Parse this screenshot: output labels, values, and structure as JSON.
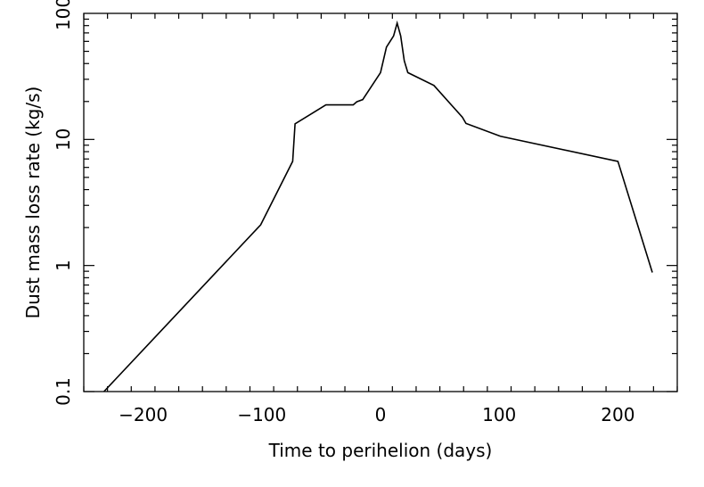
{
  "chart_data": {
    "type": "line",
    "title": "",
    "xlabel": "Time to perihelion (days)",
    "ylabel": "Dust mass loss rate (kg/s)",
    "xlim": [
      -250,
      250
    ],
    "ylim": [
      0.1,
      100
    ],
    "yscale": "log",
    "grid": false,
    "legend": "none",
    "x_ticks": [
      -200,
      -100,
      0,
      100,
      200
    ],
    "x_tick_labels": [
      "−200",
      "−100",
      "0",
      "100",
      "200"
    ],
    "y_ticks": [
      0.1,
      1,
      10,
      100
    ],
    "y_tick_labels": [
      "0.1",
      "1",
      "10",
      "100"
    ],
    "series": [
      {
        "color": "#000000",
        "x": [
          -233,
          -101,
          -74,
          -72,
          -46,
          -23,
          -20,
          -15,
          0,
          5,
          11,
          14,
          17,
          20,
          23,
          45,
          69,
          72,
          101,
          200,
          229
        ],
        "y": [
          0.1,
          2.1,
          6.7,
          13.3,
          18.8,
          18.8,
          19.9,
          20.7,
          33.9,
          54.0,
          66.2,
          83.8,
          66.2,
          42.1,
          33.9,
          26.8,
          15.0,
          13.4,
          10.6,
          6.7,
          0.88
        ]
      }
    ]
  }
}
